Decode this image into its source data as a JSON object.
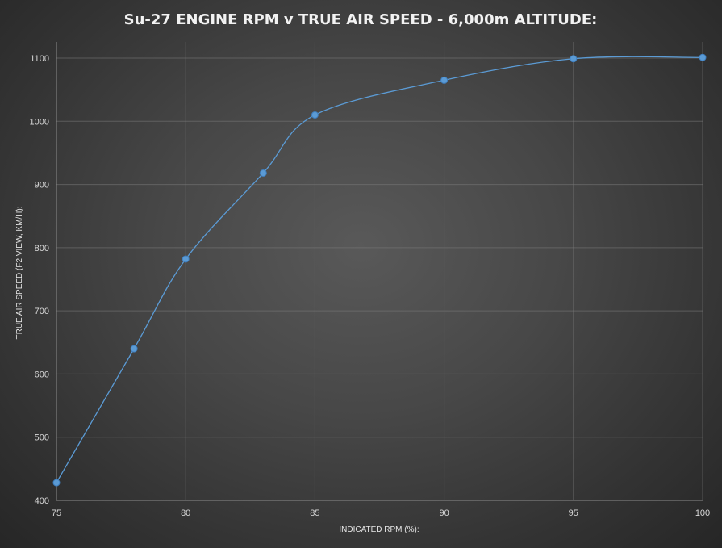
{
  "chart_data": {
    "type": "line",
    "title": "Su-27 ENGINE RPM v TRUE AIR SPEED - 6,000m ALTITUDE:",
    "xlabel": "INDICATED RPM (%):",
    "ylabel": "TRUE AIR SPEED (F2 VIEW, KM/H):",
    "xlim": [
      75,
      100
    ],
    "ylim": [
      400,
      1100
    ],
    "x_ticks": [
      75,
      80,
      85,
      90,
      95,
      100
    ],
    "y_ticks": [
      400,
      500,
      600,
      700,
      800,
      900,
      1000,
      1100
    ],
    "grid": true,
    "smooth": true,
    "series": [
      {
        "x": [
          75,
          78,
          80,
          83,
          85,
          90,
          95,
          100
        ],
        "y": [
          428,
          640,
          782,
          918,
          1010,
          1065,
          1099,
          1101
        ],
        "color": "#5b9bd5"
      }
    ]
  }
}
